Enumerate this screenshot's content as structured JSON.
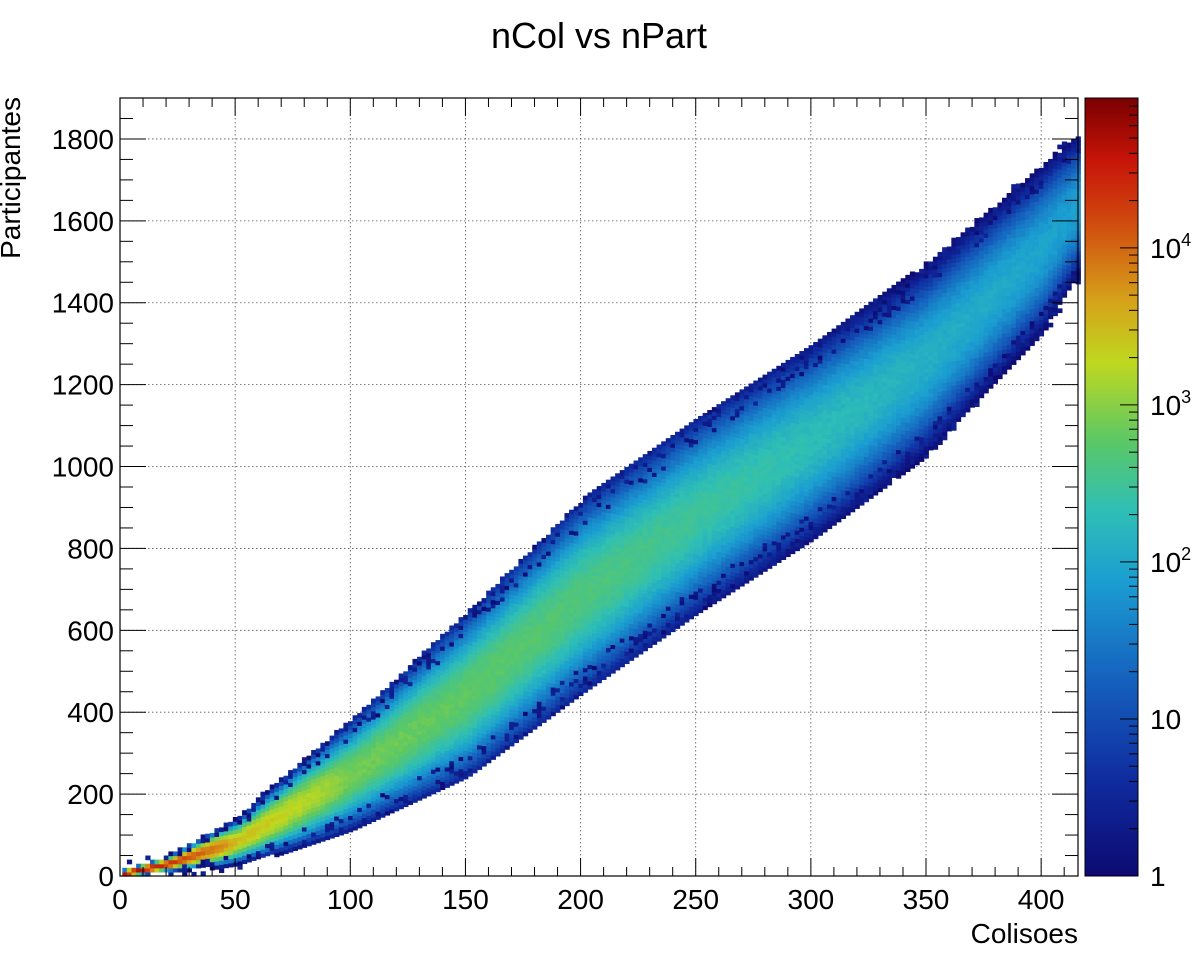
{
  "chart_data": {
    "type": "heatmap",
    "title": "nCol vs nPart",
    "xlabel": "Colisoes",
    "ylabel": "Participantes",
    "xlim": [
      0,
      416
    ],
    "ylim": [
      0,
      1900
    ],
    "grid": true,
    "x_ticks": [
      0,
      50,
      100,
      150,
      200,
      250,
      300,
      350,
      400
    ],
    "y_ticks": [
      0,
      200,
      400,
      600,
      800,
      1000,
      1200,
      1400,
      1600,
      1800
    ],
    "x_tick_labels": [
      "0",
      "50",
      "100",
      "150",
      "200",
      "250",
      "300",
      "350",
      "400"
    ],
    "y_tick_labels": [
      "0",
      "200",
      "400",
      "600",
      "800",
      "1000",
      "1200",
      "1400",
      "1600",
      "1800"
    ],
    "colorbar": {
      "scale": "log",
      "min": 1,
      "max": 90000,
      "ticks": [
        {
          "value": 1,
          "label": "1"
        },
        {
          "value": 10,
          "label": "10"
        },
        {
          "value": 100,
          "label": "10",
          "sup": "2"
        },
        {
          "value": 1000,
          "label": "10",
          "sup": "3"
        },
        {
          "value": 10000,
          "label": "10",
          "sup": "4"
        }
      ]
    },
    "band": {
      "center_y": [
        [
          0,
          0
        ],
        [
          20,
          25
        ],
        [
          50,
          80
        ],
        [
          100,
          245
        ],
        [
          150,
          440
        ],
        [
          200,
          680
        ],
        [
          250,
          880
        ],
        [
          300,
          1060
        ],
        [
          350,
          1260
        ],
        [
          400,
          1530
        ],
        [
          416,
          1640
        ]
      ],
      "half_width": [
        [
          0,
          6
        ],
        [
          20,
          12
        ],
        [
          50,
          40
        ],
        [
          100,
          110
        ],
        [
          150,
          175
        ],
        [
          200,
          210
        ],
        [
          250,
          215
        ],
        [
          300,
          215
        ],
        [
          350,
          210
        ],
        [
          400,
          190
        ],
        [
          416,
          160
        ]
      ],
      "peak_counts": [
        [
          0,
          60000
        ],
        [
          10,
          40000
        ],
        [
          25,
          15000
        ],
        [
          50,
          3000
        ],
        [
          100,
          800
        ],
        [
          150,
          600
        ],
        [
          200,
          450
        ],
        [
          250,
          300
        ],
        [
          300,
          200
        ],
        [
          350,
          130
        ],
        [
          416,
          80
        ]
      ]
    }
  }
}
